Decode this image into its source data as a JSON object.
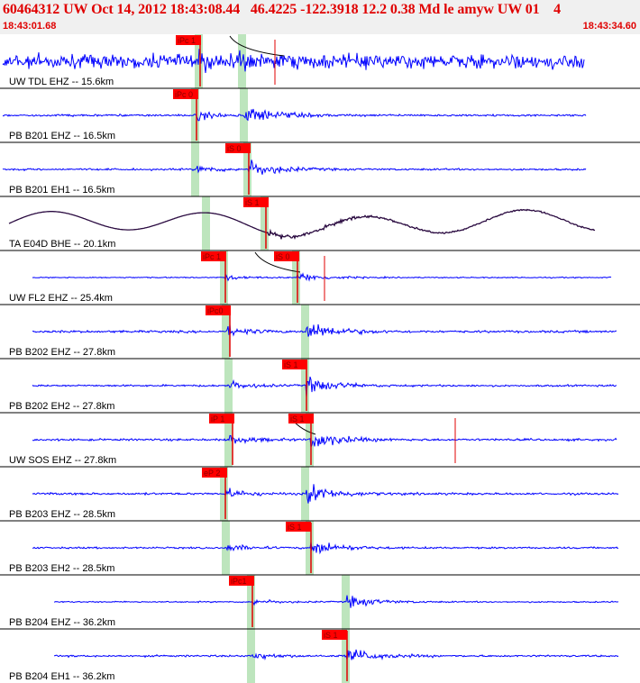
{
  "header": {
    "event_id": "60464312",
    "title": "60464312 UW Oct 14, 2012 18:43:08.44   46.4225 -122.3918 12.2 0.38 Md le amyw UW 01    4",
    "start_time": "18:43:01.68",
    "end_time": "18:43:34.60"
  },
  "colors": {
    "accent": "#e00000",
    "header_bg": "#f0f0f0",
    "trace": "#0000ff",
    "broadband_trace": "#2a0a40",
    "pick_box": "#ff0000",
    "pick_text": "#8a0000",
    "window_green": "#bde5bd",
    "divider": "#000000"
  },
  "traces": [
    {
      "label": "UW TDL EHZ -- 15.6km",
      "color": "#0000ff",
      "kind": "noisy",
      "picks": [
        {
          "text": "iPc 1"
        }
      ]
    },
    {
      "label": "PB B201 EHZ -- 16.5km",
      "color": "#0000ff",
      "kind": "quake",
      "picks": [
        {
          "text": "iPc 0"
        }
      ]
    },
    {
      "label": "PB B201 EH1 -- 16.5km",
      "color": "#0000ff",
      "kind": "quake",
      "picks": [
        {
          "text": "iS 0"
        }
      ]
    },
    {
      "label": "TA E04D BHE -- 20.1km",
      "color": "#2a0a40",
      "kind": "broadband",
      "picks": [
        {
          "text": "iS 1"
        }
      ]
    },
    {
      "label": "UW FL2 EHZ -- 25.4km",
      "color": "#0000ff",
      "kind": "quake",
      "picks": [
        {
          "text": "iPc 1"
        },
        {
          "text": "iS 0"
        }
      ]
    },
    {
      "label": "PB B202 EHZ -- 27.8km",
      "color": "#0000ff",
      "kind": "quake",
      "picks": [
        {
          "text": "iPc0"
        }
      ]
    },
    {
      "label": "PB B202 EH2 -- 27.8km",
      "color": "#0000ff",
      "kind": "quake",
      "picks": [
        {
          "text": "iS 1"
        }
      ]
    },
    {
      "label": "UW SOS EHZ -- 27.8km",
      "color": "#0000ff",
      "kind": "quake",
      "picks": [
        {
          "text": "iP 1"
        },
        {
          "text": "iS 1"
        }
      ]
    },
    {
      "label": "PB B203 EHZ -- 28.5km",
      "color": "#0000ff",
      "kind": "quake",
      "picks": [
        {
          "text": "eP 2"
        }
      ]
    },
    {
      "label": "PB B203 EH2 -- 28.5km",
      "color": "#0000ff",
      "kind": "quake",
      "picks": [
        {
          "text": "iS 1"
        }
      ]
    },
    {
      "label": "PB B204 EHZ -- 36.2km",
      "color": "#0000ff",
      "kind": "quake",
      "picks": [
        {
          "text": "iPc1"
        }
      ]
    },
    {
      "label": "PB B204 EH1 -- 36.2km",
      "color": "#0000ff",
      "kind": "quake",
      "picks": [
        {
          "text": "iS 1"
        }
      ]
    }
  ]
}
